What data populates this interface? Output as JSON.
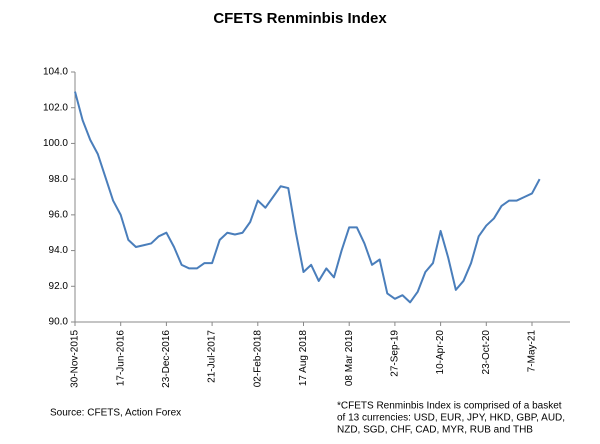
{
  "chart_data": {
    "type": "line",
    "title": "CFETS Renminbis Index",
    "categories": [
      "30-Nov-2015",
      null,
      null,
      null,
      null,
      null,
      "17-Jun-2016",
      null,
      null,
      null,
      null,
      null,
      "23-Dec-2016",
      null,
      null,
      null,
      null,
      null,
      "21-Jul-2017",
      null,
      null,
      null,
      null,
      null,
      "02-Feb-2018",
      null,
      null,
      null,
      null,
      null,
      "17 Aug 2018",
      null,
      null,
      null,
      null,
      null,
      "08 Mar 2019",
      null,
      null,
      null,
      null,
      null,
      "27-Sep-19",
      null,
      null,
      null,
      null,
      null,
      "10-Apr-20",
      null,
      null,
      null,
      null,
      null,
      "23-Oct-20",
      null,
      null,
      null,
      null,
      null,
      "7-May-21",
      null
    ],
    "series": [
      {
        "color": "#4a7ebb",
        "values": [
          102.9,
          101.3,
          100.2,
          99.4,
          98.1,
          96.8,
          96.0,
          94.6,
          94.2,
          94.3,
          94.4,
          94.8,
          95.0,
          94.2,
          93.2,
          93.0,
          93.0,
          93.3,
          93.3,
          94.6,
          95.0,
          94.9,
          95.0,
          95.6,
          96.8,
          96.4,
          97.0,
          97.6,
          97.5,
          95.0,
          92.8,
          93.2,
          92.3,
          93.0,
          92.5,
          94.0,
          95.3,
          95.3,
          94.4,
          93.2,
          93.5,
          91.6,
          91.3,
          91.5,
          91.1,
          91.7,
          92.8,
          93.3,
          95.1,
          93.6,
          91.8,
          92.3,
          93.3,
          94.8,
          95.4,
          95.8,
          96.5,
          96.8,
          96.8,
          97.0,
          97.2,
          98.0
        ]
      }
    ],
    "ylim": [
      90,
      104
    ],
    "yticks": [
      {
        "value": 90,
        "label": "90.0"
      },
      {
        "value": 92,
        "label": "92.0"
      },
      {
        "value": 94,
        "label": "94.0"
      },
      {
        "value": 96,
        "label": "96.0"
      },
      {
        "value": 98,
        "label": "98.0"
      },
      {
        "value": 100,
        "label": "100.0"
      },
      {
        "value": 102,
        "label": "102.0"
      },
      {
        "value": 104,
        "label": "104.0"
      }
    ],
    "grid": false,
    "source": "Source: CFETS, Action Forex",
    "note": [
      "*CFETS Renminbis Index is comprised of a basket",
      "of 13 currencies: USD, EUR, JPY, HKD, GBP, AUD,",
      "NZD, SGD, CHF, CAD, MYR, RUB and THB"
    ]
  }
}
